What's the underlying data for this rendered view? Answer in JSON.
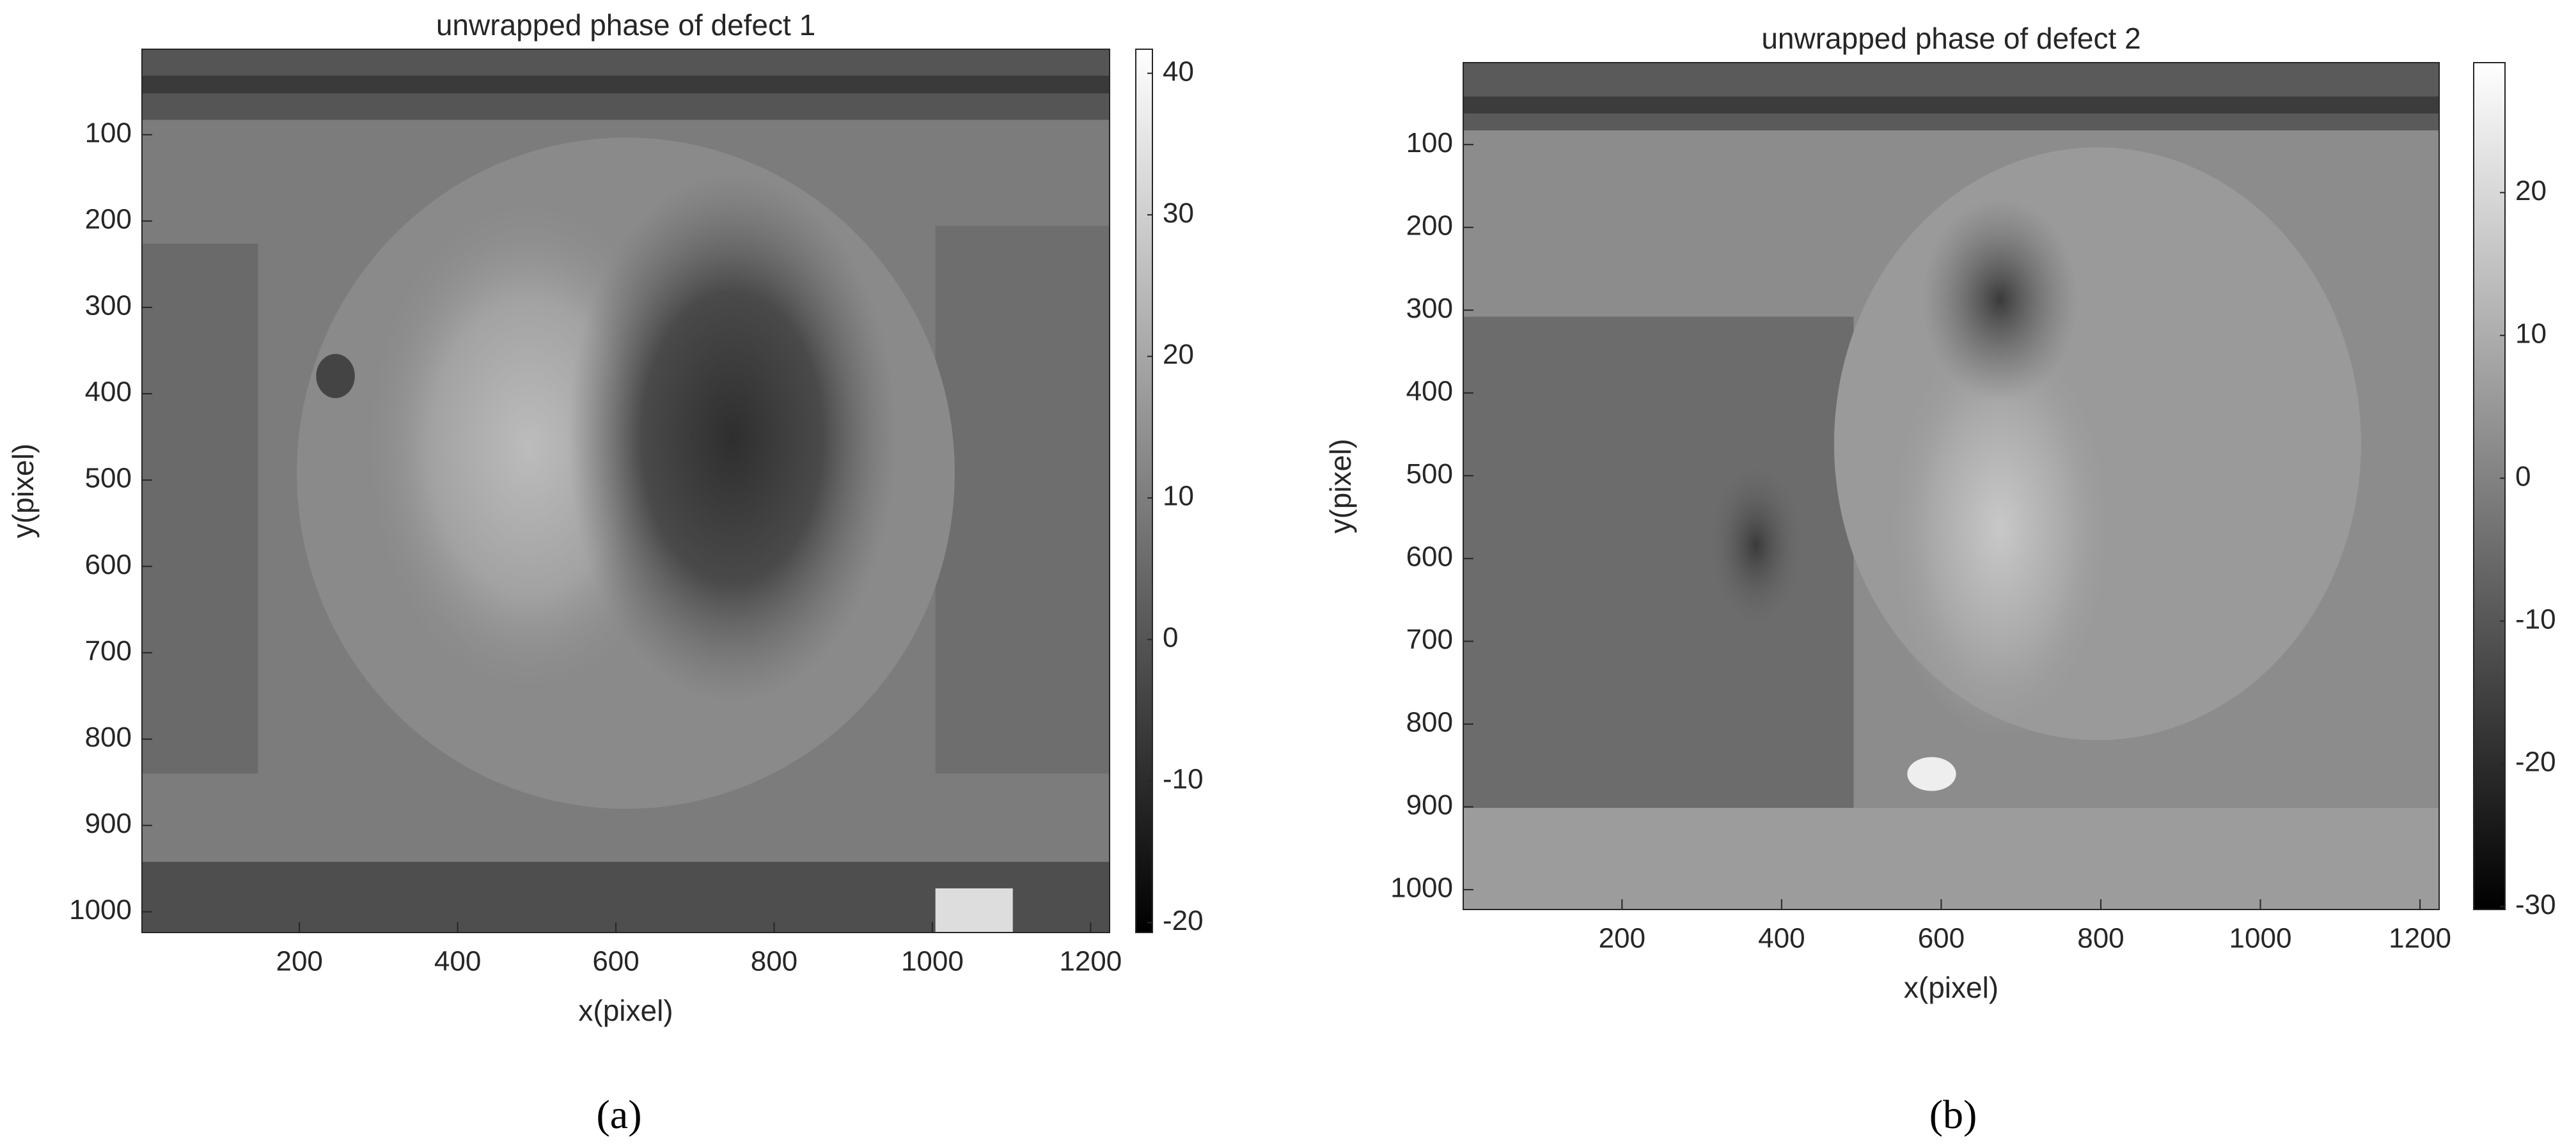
{
  "chart_data": [
    {
      "type": "heatmap",
      "title": "unwrapped phase of defect 1",
      "xlabel": "x(pixel)",
      "ylabel": "y(pixel)",
      "xlim": [
        1,
        1224
      ],
      "ylim": [
        1,
        1024
      ],
      "yreverse": true,
      "xticks": [
        200,
        400,
        600,
        800,
        1000,
        1200
      ],
      "yticks": [
        100,
        200,
        300,
        400,
        500,
        600,
        700,
        800,
        900,
        1000
      ],
      "clim": [
        -20.7,
        41.7
      ],
      "cticks": [
        -20,
        -10,
        0,
        10,
        20,
        30,
        40
      ],
      "colormap": "gray",
      "panel_label": "(a)"
    },
    {
      "type": "heatmap",
      "title": "unwrapped phase of defect 2",
      "xlabel": "x(pixel)",
      "ylabel": "y(pixel)",
      "xlim": [
        1,
        1224
      ],
      "ylim": [
        1,
        1024
      ],
      "yreverse": true,
      "xticks": [
        200,
        400,
        600,
        800,
        1000,
        1200
      ],
      "yticks": [
        100,
        200,
        300,
        400,
        500,
        600,
        700,
        800,
        900,
        1000
      ],
      "clim": [
        -30.2,
        29.1
      ],
      "cticks": [
        -30,
        -20,
        -10,
        0,
        10,
        20
      ],
      "colormap": "gray",
      "panel_label": "(b)"
    }
  ]
}
